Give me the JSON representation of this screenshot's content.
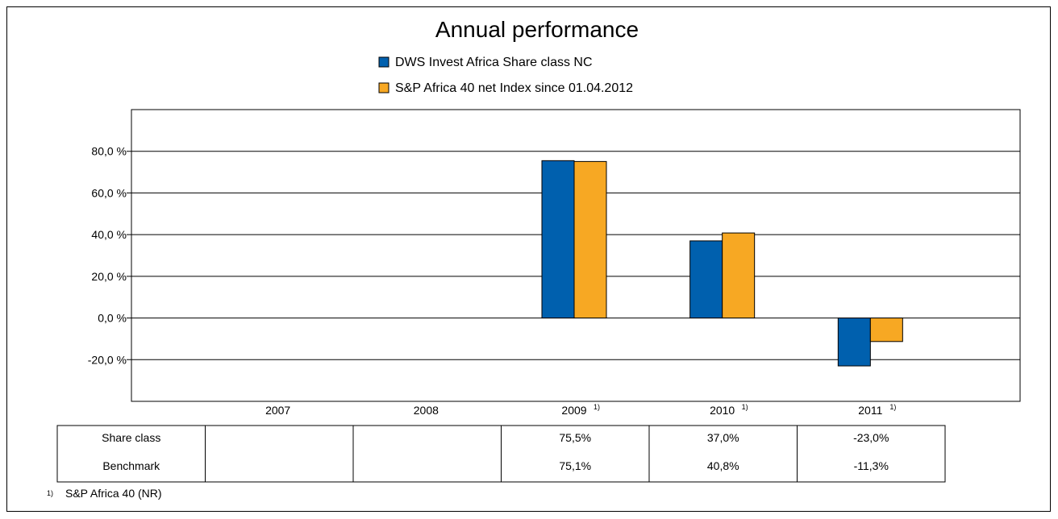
{
  "chart_data": {
    "type": "bar",
    "title": "Annual performance",
    "categories": [
      "2007",
      "2008",
      "2009",
      "2010",
      "2011"
    ],
    "category_notes": [
      "",
      "",
      "1)",
      "1)",
      "1)"
    ],
    "series": [
      {
        "name": "DWS Invest Africa Share class NC",
        "values": [
          null,
          null,
          75.5,
          37.0,
          -23.0
        ],
        "color": "#0060ae"
      },
      {
        "name": "S&P Africa 40 net Index since 01.04.2012",
        "values": [
          null,
          null,
          75.1,
          40.8,
          -11.3
        ],
        "color": "#f7a823"
      }
    ],
    "yticks": [
      "80,0 %",
      "60,0 %",
      "40,0 %",
      "20,0 %",
      "0,0 %",
      "-20,0 %"
    ],
    "ytick_values": [
      80,
      60,
      40,
      20,
      0,
      -20
    ],
    "ylim": [
      -40,
      100
    ],
    "grid": true,
    "legend": "top-center",
    "xlabel": "",
    "ylabel": ""
  },
  "table": {
    "rows": [
      {
        "label": "Share class",
        "cells": [
          "",
          "",
          "75,5%",
          "37,0%",
          "-23,0%"
        ]
      },
      {
        "label": "Benchmark",
        "cells": [
          "",
          "",
          "75,1%",
          "40,8%",
          "-11,3%"
        ]
      }
    ]
  },
  "footnote": {
    "marker": "1)",
    "text": "S&P Africa 40 (NR)"
  }
}
